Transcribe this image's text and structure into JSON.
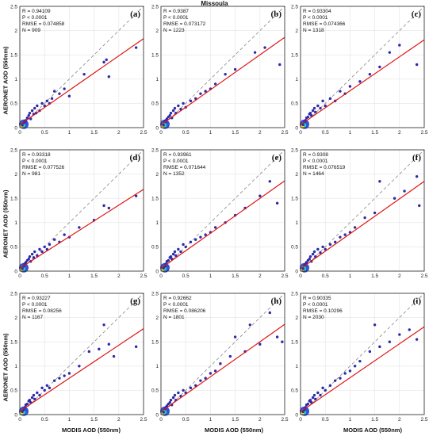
{
  "figure": {
    "title": "Missoula",
    "ylabel": "AERONET AOD (550nm)",
    "xlabel": "MODIS AOD (550nm)"
  },
  "chart_data": [
    {
      "type": "scatter",
      "panel": "(a)",
      "xlim": [
        0,
        2.5
      ],
      "ylim": [
        0,
        2.5
      ],
      "x_ticks": [
        "0",
        "0.5",
        "1",
        "1.5",
        "2",
        "2.5"
      ],
      "y_ticks": [
        "0",
        "0.5",
        "1",
        "1.5",
        "2",
        "2.5"
      ],
      "stats": [
        "R = 0.94109",
        "P < 0.0001",
        "RMSE = 0.074858",
        "N = 909"
      ],
      "fit": {
        "slope": 0.71,
        "intercept": 0.06
      },
      "one_to_one": true,
      "x": [
        0.05,
        0.08,
        0.1,
        0.12,
        0.15,
        0.18,
        0.2,
        0.22,
        0.25,
        0.28,
        0.3,
        0.33,
        0.35,
        0.4,
        0.45,
        0.5,
        0.55,
        0.6,
        0.65,
        0.7,
        0.8,
        0.9,
        1.0,
        1.3,
        1.7,
        1.75,
        1.8,
        2.35
      ],
      "y": [
        0.05,
        0.1,
        0.12,
        0.15,
        0.2,
        0.25,
        0.3,
        0.18,
        0.35,
        0.28,
        0.4,
        0.3,
        0.45,
        0.35,
        0.5,
        0.45,
        0.55,
        0.5,
        0.6,
        0.75,
        0.7,
        0.8,
        0.65,
        1.1,
        1.35,
        1.4,
        1.05,
        1.65
      ]
    },
    {
      "type": "scatter",
      "panel": "(b)",
      "xlim": [
        0,
        2.5
      ],
      "ylim": [
        0,
        2.5
      ],
      "x_ticks": [
        "0",
        "0.5",
        "1",
        "1.5",
        "2",
        "2.5"
      ],
      "y_ticks": [
        "0",
        "0.5",
        "1",
        "1.5",
        "2",
        "2.5"
      ],
      "stats": [
        "R = 0.9387",
        "P < 0.0001",
        "RMSE = 0.073172",
        "N = 1223"
      ],
      "fit": {
        "slope": 0.72,
        "intercept": 0.06
      },
      "one_to_one": true,
      "x": [
        0.05,
        0.08,
        0.1,
        0.12,
        0.15,
        0.18,
        0.2,
        0.22,
        0.25,
        0.28,
        0.3,
        0.35,
        0.4,
        0.45,
        0.5,
        0.6,
        0.7,
        0.8,
        0.9,
        1.0,
        1.1,
        1.3,
        1.5,
        1.9,
        2.1,
        2.4
      ],
      "y": [
        0.05,
        0.12,
        0.15,
        0.18,
        0.22,
        0.25,
        0.3,
        0.2,
        0.35,
        0.4,
        0.3,
        0.45,
        0.38,
        0.5,
        0.42,
        0.55,
        0.6,
        0.7,
        0.75,
        0.8,
        0.9,
        1.1,
        1.2,
        1.55,
        1.65,
        1.3
      ]
    },
    {
      "type": "scatter",
      "panel": "(c)",
      "xlim": [
        0,
        2.5
      ],
      "ylim": [
        0,
        2.5
      ],
      "x_ticks": [
        "0",
        "0.5",
        "1",
        "1.5",
        "2",
        "2.5"
      ],
      "y_ticks": [
        "0",
        "0.5",
        "1",
        "1.5",
        "2",
        "2.5"
      ],
      "stats": [
        "R = 0.93304",
        "P < 0.0001",
        "RMSE = 0.074366",
        "N = 1318"
      ],
      "fit": {
        "slope": 0.7,
        "intercept": 0.06
      },
      "one_to_one": true,
      "x": [
        0.05,
        0.08,
        0.1,
        0.12,
        0.15,
        0.18,
        0.2,
        0.22,
        0.25,
        0.28,
        0.3,
        0.35,
        0.4,
        0.45,
        0.5,
        0.6,
        0.7,
        0.8,
        0.9,
        1.0,
        1.2,
        1.4,
        1.6,
        1.8,
        2.0,
        2.35
      ],
      "y": [
        0.06,
        0.12,
        0.15,
        0.2,
        0.22,
        0.28,
        0.3,
        0.25,
        0.35,
        0.4,
        0.32,
        0.45,
        0.4,
        0.55,
        0.45,
        0.6,
        0.55,
        0.75,
        0.7,
        0.85,
        0.95,
        1.1,
        1.25,
        1.55,
        1.7,
        1.3
      ]
    },
    {
      "type": "scatter",
      "panel": "(d)",
      "xlim": [
        0,
        2.5
      ],
      "ylim": [
        0,
        2.5
      ],
      "x_ticks": [
        "0",
        "0.5",
        "1",
        "1.5",
        "2",
        "2.5"
      ],
      "y_ticks": [
        "0",
        "0.5",
        "1",
        "1.5",
        "2",
        "2.5"
      ],
      "stats": [
        "R = 0.93318",
        "P < 0.0001",
        "RMSE = 0.077526",
        "N = 981"
      ],
      "fit": {
        "slope": 0.65,
        "intercept": 0.06
      },
      "one_to_one": true,
      "x": [
        0.05,
        0.08,
        0.1,
        0.12,
        0.15,
        0.18,
        0.2,
        0.22,
        0.25,
        0.28,
        0.3,
        0.35,
        0.4,
        0.45,
        0.5,
        0.55,
        0.6,
        0.7,
        0.8,
        0.9,
        1.0,
        1.2,
        1.5,
        1.7,
        1.8,
        2.35
      ],
      "y": [
        0.05,
        0.1,
        0.15,
        0.18,
        0.22,
        0.25,
        0.3,
        0.2,
        0.35,
        0.28,
        0.4,
        0.32,
        0.45,
        0.4,
        0.5,
        0.45,
        0.55,
        0.65,
        0.6,
        0.75,
        0.7,
        0.9,
        1.05,
        1.35,
        1.3,
        1.55
      ]
    },
    {
      "type": "scatter",
      "panel": "(e)",
      "xlim": [
        0,
        2.5
      ],
      "ylim": [
        0,
        2.5
      ],
      "x_ticks": [
        "0",
        "0.5",
        "1",
        "1.5",
        "2",
        "2.5"
      ],
      "y_ticks": [
        "0",
        "0.5",
        "1",
        "1.5",
        "2",
        "2.5"
      ],
      "stats": [
        "R = 0.93961",
        "P < 0.0001",
        "RMSE = 0.071644",
        "N = 1352"
      ],
      "fit": {
        "slope": 0.72,
        "intercept": 0.06
      },
      "one_to_one": true,
      "x": [
        0.05,
        0.08,
        0.1,
        0.12,
        0.15,
        0.18,
        0.2,
        0.22,
        0.25,
        0.28,
        0.3,
        0.35,
        0.4,
        0.45,
        0.5,
        0.6,
        0.7,
        0.8,
        0.9,
        1.0,
        1.1,
        1.3,
        1.5,
        1.7,
        2.0,
        2.2,
        2.35
      ],
      "y": [
        0.06,
        0.1,
        0.15,
        0.2,
        0.22,
        0.28,
        0.3,
        0.25,
        0.35,
        0.4,
        0.32,
        0.45,
        0.4,
        0.55,
        0.5,
        0.6,
        0.65,
        0.7,
        0.75,
        0.8,
        0.9,
        1.0,
        1.15,
        1.3,
        1.55,
        1.85,
        1.4
      ]
    },
    {
      "type": "scatter",
      "panel": "(f)",
      "xlim": [
        0,
        2.5
      ],
      "ylim": [
        0,
        2.5
      ],
      "x_ticks": [
        "0",
        "0.5",
        "1",
        "1.5",
        "2",
        "2.5"
      ],
      "y_ticks": [
        "0",
        "0.5",
        "1",
        "1.5",
        "2",
        "2.5"
      ],
      "stats": [
        "R = 0.9308",
        "P < 0.0001",
        "RMSE = 0.076519",
        "N = 1464"
      ],
      "fit": {
        "slope": 0.72,
        "intercept": 0.05
      },
      "one_to_one": true,
      "x": [
        0.05,
        0.08,
        0.1,
        0.12,
        0.15,
        0.18,
        0.2,
        0.22,
        0.25,
        0.28,
        0.3,
        0.35,
        0.4,
        0.45,
        0.5,
        0.6,
        0.7,
        0.8,
        0.9,
        1.0,
        1.1,
        1.3,
        1.5,
        1.6,
        1.9,
        2.1,
        2.35,
        2.4
      ],
      "y": [
        0.05,
        0.12,
        0.15,
        0.18,
        0.22,
        0.25,
        0.3,
        0.2,
        0.35,
        0.4,
        0.3,
        0.45,
        0.38,
        0.5,
        0.45,
        0.55,
        0.6,
        0.7,
        0.75,
        0.8,
        0.9,
        1.1,
        1.2,
        1.85,
        1.5,
        1.65,
        1.95,
        1.35
      ]
    },
    {
      "type": "scatter",
      "panel": "(g)",
      "xlim": [
        0,
        2.5
      ],
      "ylim": [
        0,
        2.5
      ],
      "x_ticks": [
        "0",
        "0.5",
        "1",
        "1.5",
        "2",
        "2.5"
      ],
      "y_ticks": [
        "0",
        "0.5",
        "1",
        "1.5",
        "2",
        "2.5"
      ],
      "stats": [
        "R = 0.93227",
        "P < 0.0001",
        "RMSE = 0.08256",
        "N = 1167"
      ],
      "fit": {
        "slope": 0.68,
        "intercept": 0.07
      },
      "one_to_one": true,
      "x": [
        0.05,
        0.08,
        0.1,
        0.12,
        0.15,
        0.18,
        0.2,
        0.22,
        0.25,
        0.28,
        0.3,
        0.35,
        0.4,
        0.45,
        0.5,
        0.55,
        0.6,
        0.7,
        0.8,
        0.9,
        1.0,
        1.2,
        1.4,
        1.6,
        1.7,
        1.8,
        1.9,
        2.35
      ],
      "y": [
        0.06,
        0.1,
        0.15,
        0.2,
        0.22,
        0.28,
        0.3,
        0.25,
        0.35,
        0.4,
        0.32,
        0.45,
        0.4,
        0.55,
        0.5,
        0.6,
        0.55,
        0.7,
        0.75,
        0.8,
        0.85,
        1.0,
        1.3,
        1.35,
        1.85,
        1.45,
        1.2,
        1.4
      ]
    },
    {
      "type": "scatter",
      "panel": "(h)",
      "xlim": [
        0,
        2.5
      ],
      "ylim": [
        0,
        2.5
      ],
      "x_ticks": [
        "0",
        "0.5",
        "1",
        "1.5",
        "2",
        "2.5"
      ],
      "y_ticks": [
        "0",
        "0.5",
        "1",
        "1.5",
        "2",
        "2.5"
      ],
      "stats": [
        "R = 0.92662",
        "P < 0.0001",
        "RMSE = 0.086206",
        "N = 1801"
      ],
      "fit": {
        "slope": 0.72,
        "intercept": 0.06
      },
      "one_to_one": true,
      "x": [
        0.05,
        0.08,
        0.1,
        0.12,
        0.15,
        0.18,
        0.2,
        0.22,
        0.25,
        0.28,
        0.3,
        0.35,
        0.4,
        0.45,
        0.5,
        0.6,
        0.7,
        0.8,
        0.9,
        1.0,
        1.1,
        1.2,
        1.4,
        1.5,
        1.7,
        1.8,
        2.0,
        2.2,
        2.35,
        2.45
      ],
      "y": [
        0.05,
        0.12,
        0.15,
        0.18,
        0.22,
        0.25,
        0.3,
        0.2,
        0.35,
        0.4,
        0.3,
        0.45,
        0.38,
        0.5,
        0.45,
        0.55,
        0.6,
        0.7,
        0.75,
        0.85,
        0.9,
        1.05,
        1.2,
        1.6,
        1.3,
        1.85,
        1.45,
        2.1,
        1.6,
        1.5
      ]
    },
    {
      "type": "scatter",
      "panel": "(i)",
      "xlim": [
        0,
        2.5
      ],
      "ylim": [
        0,
        2.5
      ],
      "x_ticks": [
        "0",
        "0.5",
        "1",
        "1.5",
        "2",
        "2.5"
      ],
      "y_ticks": [
        "0",
        "0.5",
        "1",
        "1.5",
        "2",
        "2.5"
      ],
      "stats": [
        "R = 0.90335",
        "P < 0.0001",
        "RMSE = 0.10296",
        "N = 2030"
      ],
      "fit": {
        "slope": 0.7,
        "intercept": 0.06
      },
      "one_to_one": true,
      "x": [
        0.05,
        0.08,
        0.1,
        0.12,
        0.15,
        0.18,
        0.2,
        0.22,
        0.25,
        0.28,
        0.3,
        0.35,
        0.4,
        0.45,
        0.5,
        0.6,
        0.7,
        0.8,
        0.9,
        1.0,
        1.1,
        1.2,
        1.4,
        1.5,
        1.6,
        1.8,
        2.0,
        2.2,
        2.35
      ],
      "y": [
        0.06,
        0.1,
        0.15,
        0.2,
        0.22,
        0.28,
        0.3,
        0.25,
        0.35,
        0.4,
        0.32,
        0.45,
        0.4,
        0.55,
        0.5,
        0.6,
        0.7,
        0.75,
        0.85,
        0.9,
        1.0,
        1.1,
        1.3,
        1.85,
        1.4,
        1.5,
        1.65,
        1.75,
        1.55
      ]
    }
  ]
}
